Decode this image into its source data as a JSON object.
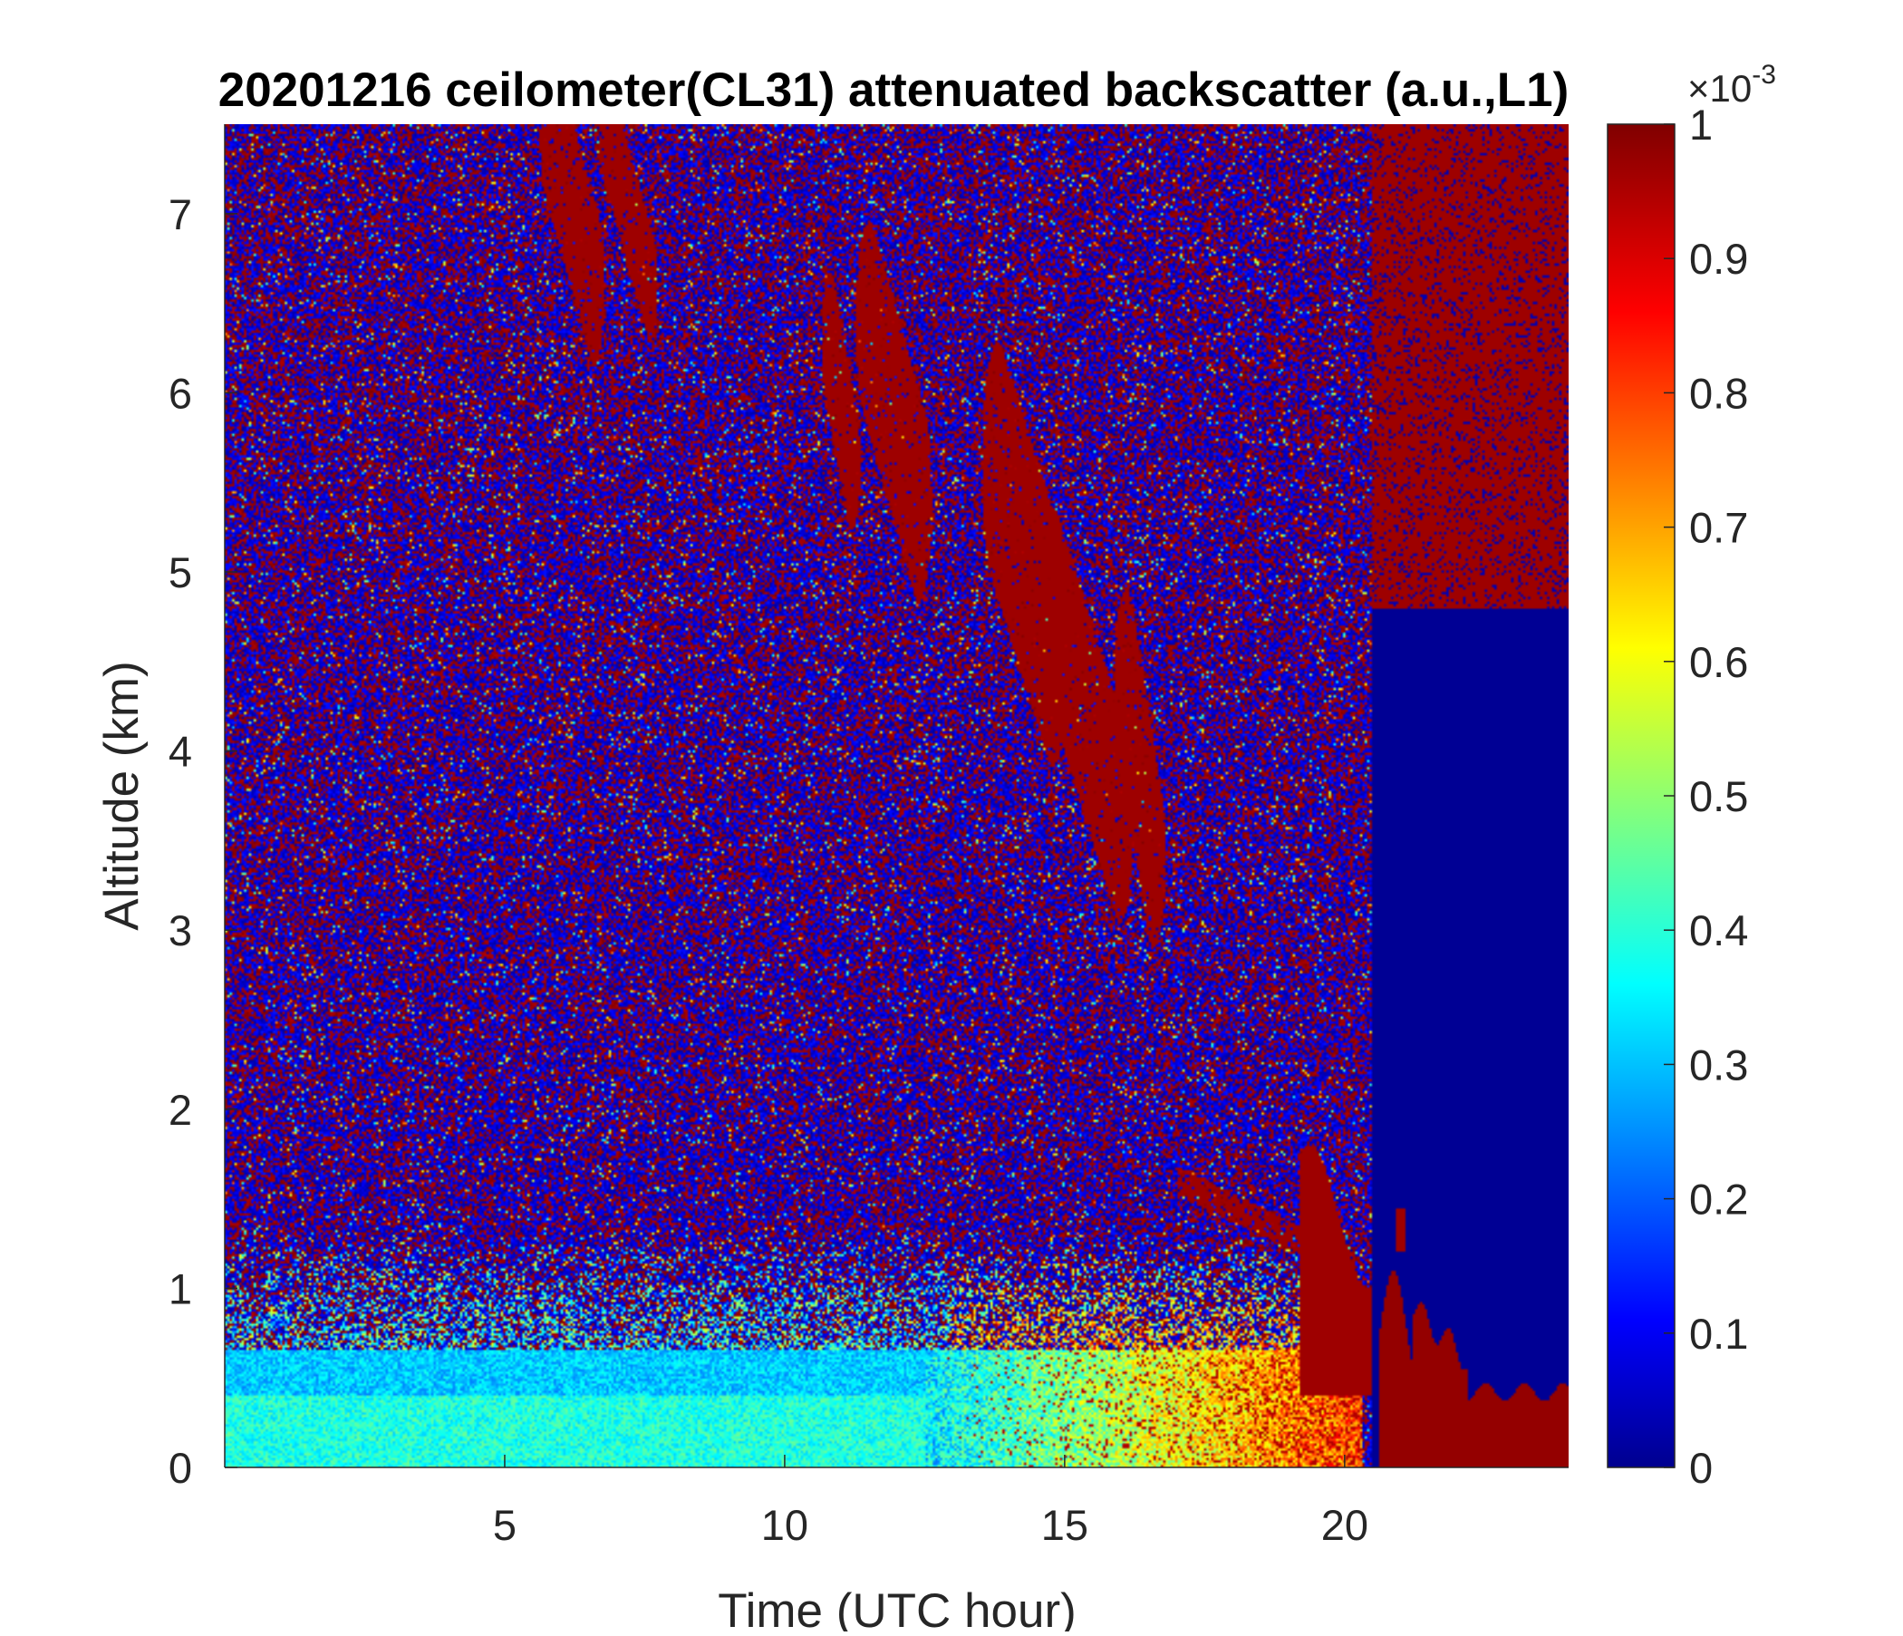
{
  "chart_data": {
    "type": "heatmap",
    "title": "20201216 ceilometer(CL31) attenuated backscatter (a.u.,L1)",
    "xlabel": "Time (UTC hour)",
    "ylabel": "Altitude (km)",
    "xlim": [
      0,
      24
    ],
    "ylim": [
      0,
      7.5
    ],
    "x_ticks": [
      "5",
      "10",
      "15",
      "20"
    ],
    "x_tick_values": [
      5,
      10,
      15,
      20
    ],
    "y_ticks": [
      "0",
      "1",
      "2",
      "3",
      "4",
      "5",
      "6",
      "7"
    ],
    "y_tick_values": [
      0,
      1,
      2,
      3,
      4,
      5,
      6,
      7
    ],
    "colorbar": {
      "colormap": "jet",
      "clim": [
        0,
        0.001
      ],
      "exponent_label": "×10",
      "exponent_power": "-3",
      "ticks": [
        "0",
        "0.1",
        "0.2",
        "0.3",
        "0.4",
        "0.5",
        "0.6",
        "0.7",
        "0.8",
        "0.9",
        "1"
      ],
      "tick_values": [
        0,
        0.1,
        0.2,
        0.3,
        0.4,
        0.5,
        0.6,
        0.7,
        0.8,
        0.9,
        1
      ]
    },
    "features": [
      {
        "type": "noisy_background",
        "x": [
          0,
          20.5
        ],
        "y": [
          1.5,
          7.5
        ],
        "value_range": [
          0,
          1
        ]
      },
      {
        "type": "aerosol_layer",
        "x": [
          0,
          12.5
        ],
        "y": [
          0,
          0.6
        ],
        "value": 0.35
      },
      {
        "type": "aerosol_layer",
        "x": [
          12.5,
          20.3
        ],
        "y": [
          0,
          0.6
        ],
        "value": 0.65
      },
      {
        "type": "saturated_cloud_region",
        "x": [
          20.3,
          24
        ],
        "y": [
          0,
          0.45
        ],
        "value": 1
      },
      {
        "type": "clear_region",
        "x": [
          20.5,
          24
        ],
        "y": [
          0.45,
          4.8
        ],
        "value": 0
      },
      {
        "type": "saturated_region",
        "x": [
          21,
          24
        ],
        "y": [
          4.8,
          7.5
        ],
        "value": 1
      }
    ],
    "grid": false,
    "legend": "none"
  }
}
